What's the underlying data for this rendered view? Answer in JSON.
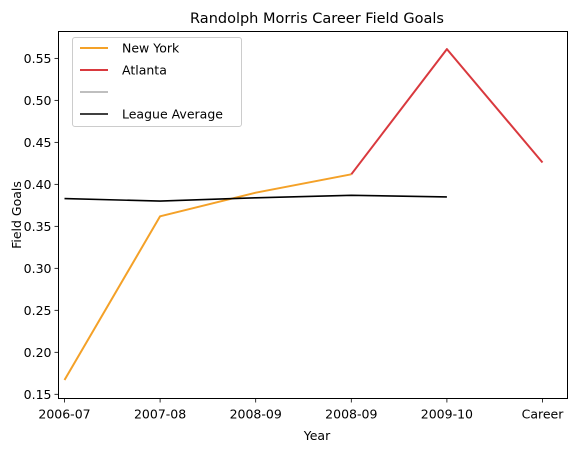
{
  "chart_data": {
    "type": "line",
    "title": "Randolph Morris Career Field Goals",
    "xlabel": "Year",
    "ylabel": "Field Goals",
    "categories": [
      "2006-07",
      "2007-08",
      "2008-09",
      "2008-09",
      "2009-10",
      "Career"
    ],
    "ylim": [
      0.145,
      0.582
    ],
    "yticks": [
      0.15,
      0.2,
      0.25,
      0.3,
      0.35,
      0.4,
      0.45,
      0.5,
      0.55
    ],
    "ytick_labels": [
      "0.15",
      "0.20",
      "0.25",
      "0.30",
      "0.35",
      "0.40",
      "0.45",
      "0.50",
      "0.55"
    ],
    "grid": false,
    "legend_position": "top-left",
    "series": [
      {
        "name": "New York",
        "color": "#f4a128",
        "width": 2,
        "points": [
          [
            0,
            0.167
          ],
          [
            1,
            0.362
          ],
          [
            2,
            0.39
          ],
          [
            3,
            0.412
          ]
        ]
      },
      {
        "name": "Atlanta",
        "color": "#d9393e",
        "width": 2,
        "points": [
          [
            3,
            0.412
          ],
          [
            4,
            0.561
          ],
          [
            5,
            0.426
          ]
        ]
      },
      {
        "name": "",
        "color": "#bfbfbf",
        "width": 2,
        "points": []
      },
      {
        "name": "League Average",
        "color": "#000000",
        "width": 1.6,
        "points": [
          [
            0,
            0.383
          ],
          [
            1,
            0.38
          ],
          [
            2,
            0.384
          ],
          [
            3,
            0.387
          ],
          [
            4,
            0.385
          ]
        ]
      }
    ]
  }
}
